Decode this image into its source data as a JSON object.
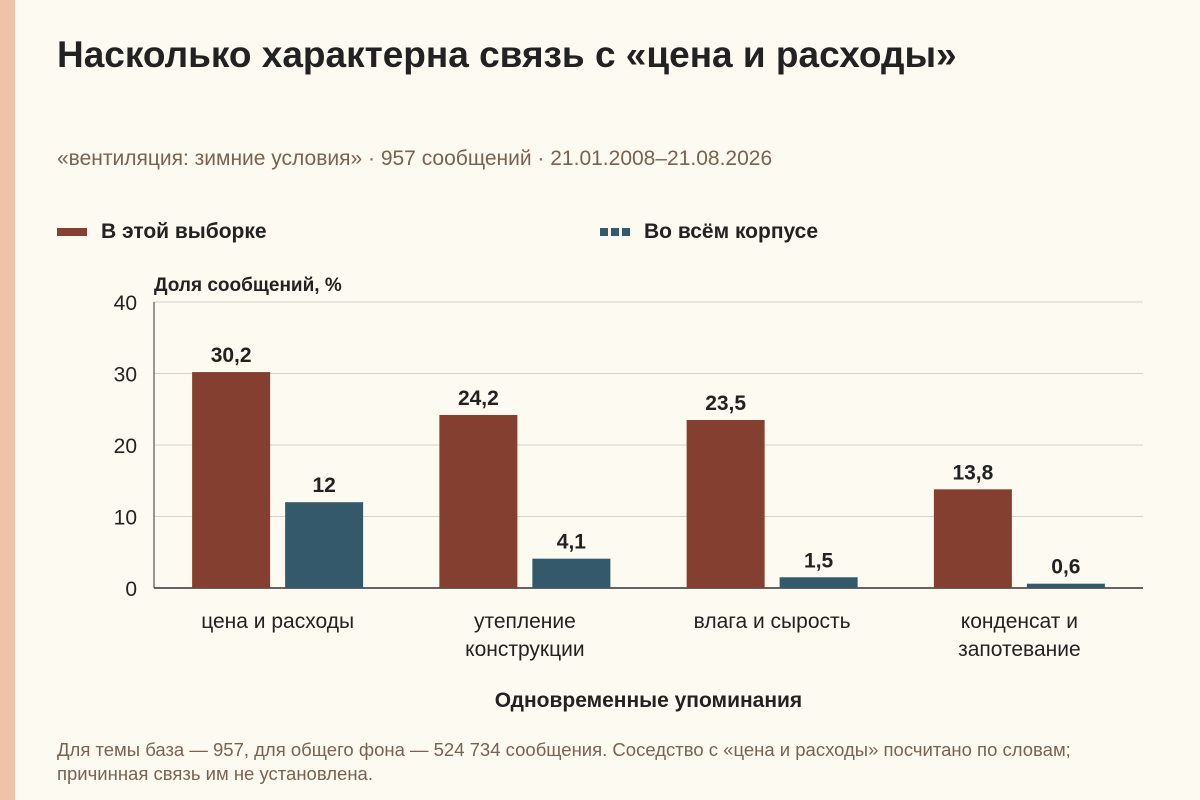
{
  "title": "Насколько характерна связь с «цена и расходы»",
  "subtitle": "«вентиляция: зимние условия» · 957 сообщений · 21.01.2008–21.08.2026",
  "footnote": "Для темы база — 957, для общего фона — 524 734 сообщения. Соседство с «цена и расходы» посчитано по словам; причинная связь им не установлена.",
  "colors": {
    "background": "#fdfaf2",
    "accent_strip": "#efc3a8",
    "series_sample": "#843f31",
    "series_corpus": "#33596a"
  },
  "chart_data": {
    "type": "bar",
    "ylabel": "Доля сообщений, %",
    "xlabel": "Одновременные упоминания",
    "ylim": [
      0,
      40
    ],
    "yticks": [
      0,
      10,
      20,
      30,
      40
    ],
    "grid": true,
    "legend_position": "top",
    "categories": [
      [
        "цена и расходы"
      ],
      [
        "утепление",
        "конструкции"
      ],
      [
        "влага и сырость"
      ],
      [
        "конденсат и",
        "запотевание"
      ]
    ],
    "series": [
      {
        "name": "В этой выборке",
        "color": "#843f31",
        "values": [
          30.2,
          24.2,
          23.5,
          13.8
        ],
        "labels": [
          "30,2",
          "24,2",
          "23,5",
          "13,8"
        ]
      },
      {
        "name": "Во всём корпусе",
        "color": "#33596a",
        "values": [
          12,
          4.1,
          1.5,
          0.6
        ],
        "labels": [
          "12",
          "4,1",
          "1,5",
          "0,6"
        ]
      }
    ]
  }
}
